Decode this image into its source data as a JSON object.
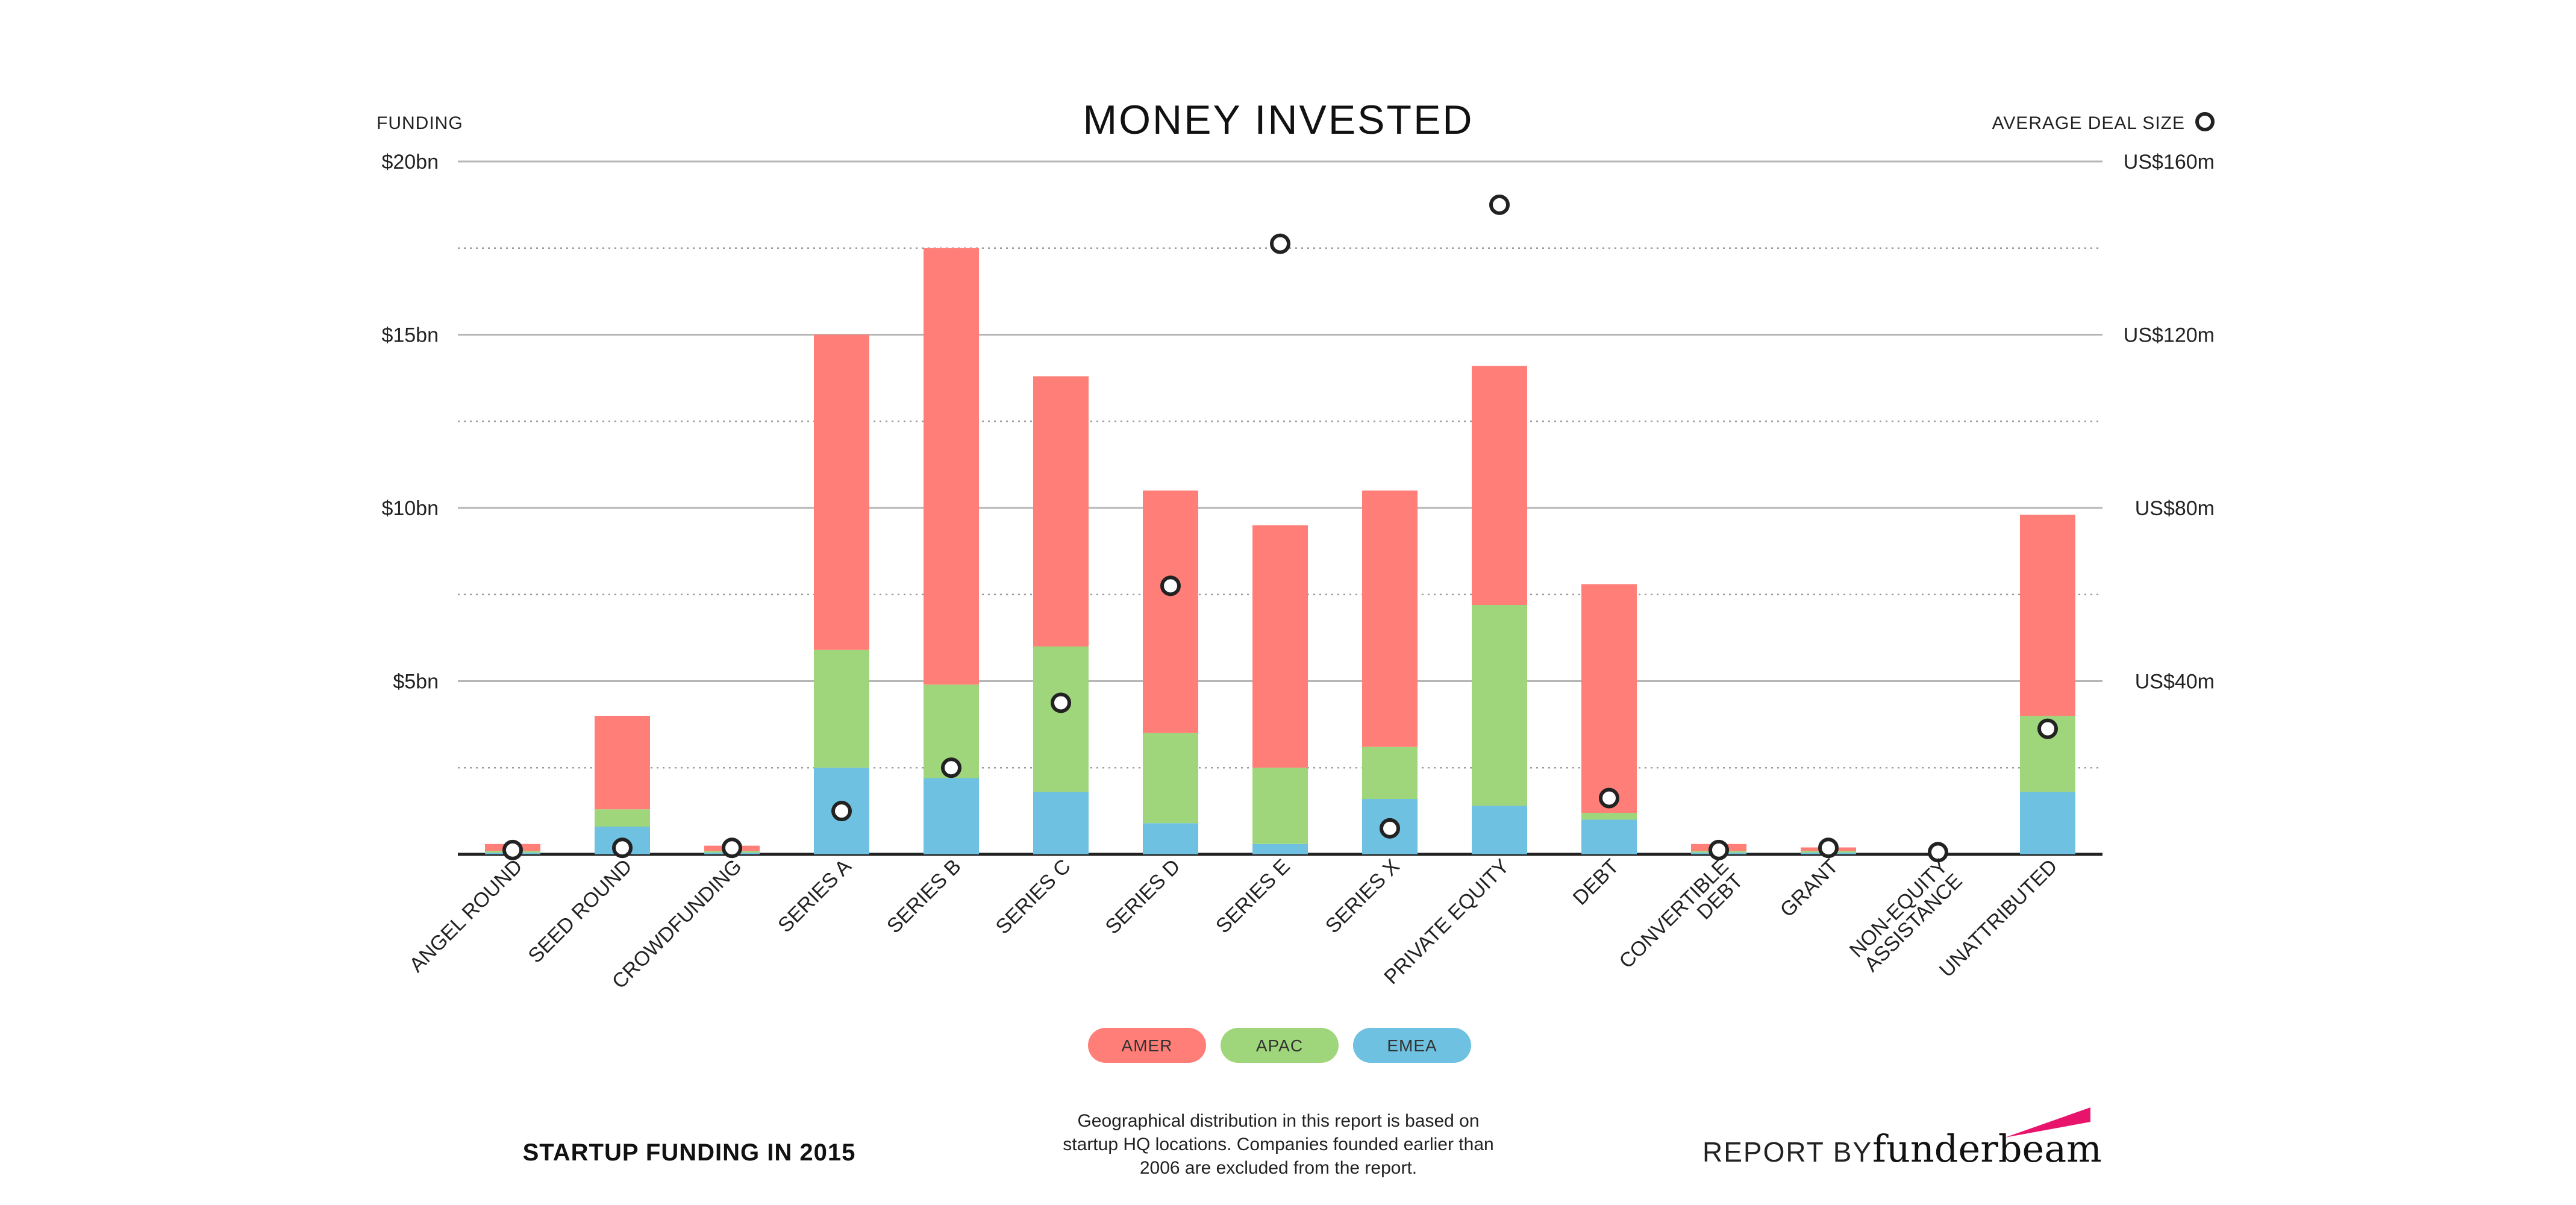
{
  "chart_data": {
    "type": "bar",
    "stacked": true,
    "title": "MONEY INVESTED",
    "ylabel": "FUNDING",
    "y2label": "AVERAGE DEAL SIZE",
    "ylim": [
      0,
      20
    ],
    "y2lim": [
      0,
      160
    ],
    "yticks": [
      {
        "value": 5,
        "label": "$5bn"
      },
      {
        "value": 10,
        "label": "$10bn"
      },
      {
        "value": 15,
        "label": "$15bn"
      },
      {
        "value": 20,
        "label": "$20bn"
      }
    ],
    "y2ticks": [
      {
        "value": 40,
        "label": "US$40m"
      },
      {
        "value": 80,
        "label": "US$80m"
      },
      {
        "value": 120,
        "label": "US$120m"
      },
      {
        "value": 160,
        "label": "US$160m"
      }
    ],
    "categories": [
      [
        "ANGEL ROUND"
      ],
      [
        "SEED ROUND"
      ],
      [
        "CROWDFUNDING"
      ],
      [
        "SERIES A"
      ],
      [
        "SERIES B"
      ],
      [
        "SERIES C"
      ],
      [
        "SERIES D"
      ],
      [
        "SERIES E"
      ],
      [
        "SERIES X"
      ],
      [
        "PRIVATE EQUITY"
      ],
      [
        "DEBT"
      ],
      [
        "CONVERTIBLE",
        "DEBT"
      ],
      [
        "GRANT"
      ],
      [
        "NON-EQUITY",
        "ASSISTANCE"
      ],
      [
        "UNATTRIBUTED"
      ]
    ],
    "series": [
      {
        "name": "EMEA",
        "color": "#6ec1e0",
        "values": [
          0.05,
          0.8,
          0.05,
          2.5,
          2.2,
          1.8,
          0.9,
          0.3,
          1.6,
          1.4,
          1.0,
          0.05,
          0.05,
          0.0,
          1.8
        ]
      },
      {
        "name": "APAC",
        "color": "#a0d67b",
        "values": [
          0.05,
          0.5,
          0.05,
          3.4,
          2.7,
          4.2,
          2.6,
          2.2,
          1.5,
          5.8,
          0.2,
          0.05,
          0.05,
          0.0,
          2.2
        ]
      },
      {
        "name": "AMER",
        "color": "#ff7f78",
        "values": [
          0.2,
          2.7,
          0.15,
          9.1,
          12.6,
          7.8,
          7.0,
          7.0,
          7.4,
          6.9,
          6.6,
          0.2,
          0.1,
          0.0,
          5.8
        ]
      }
    ],
    "deal_size": {
      "name": "AVERAGE DEAL SIZE",
      "values": [
        1,
        1.5,
        1.5,
        10,
        20,
        35,
        62,
        141,
        6,
        150,
        13,
        1,
        1.5,
        0.5,
        29
      ]
    },
    "legend": [
      "AMER",
      "APAC",
      "EMEA"
    ],
    "legend_placement": "bottom-center",
    "grid": true
  },
  "colors": {
    "amer": "#ff7f78",
    "apac": "#a0d67b",
    "emea": "#6ec1e0",
    "brand_accent": "#e8146c"
  },
  "footer": {
    "left": "STARTUP FUNDING IN 2015",
    "note_lines": [
      "Geographical distribution in this report is based on",
      "startup HQ locations. Companies founded earlier than",
      "2006 are excluded from the report."
    ],
    "report_by": "REPORT BY",
    "brand": "funderbeam"
  }
}
